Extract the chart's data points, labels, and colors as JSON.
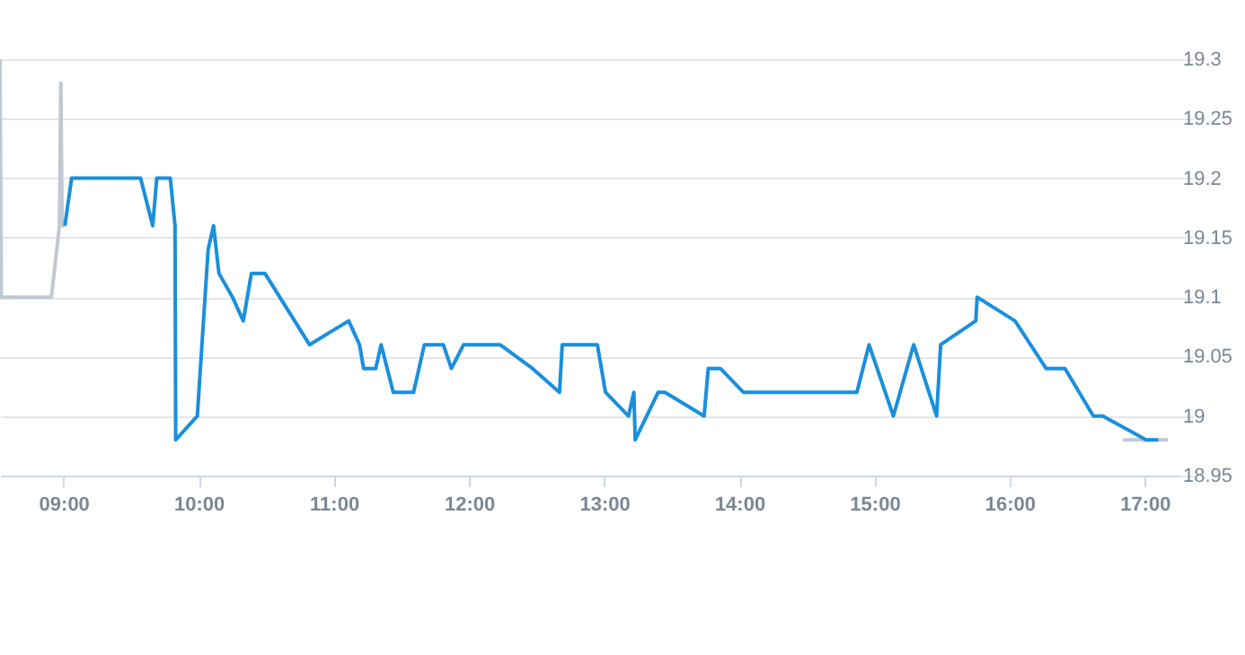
{
  "chart_data": {
    "type": "line",
    "xlim": [
      8.53,
      17.25
    ],
    "ylim": [
      18.95,
      19.3
    ],
    "xticks": [
      {
        "value": 9,
        "label": "09:00"
      },
      {
        "value": 10,
        "label": "10:00"
      },
      {
        "value": 11,
        "label": "11:00"
      },
      {
        "value": 12,
        "label": "12:00"
      },
      {
        "value": 13,
        "label": "13:00"
      },
      {
        "value": 14,
        "label": "14:00"
      },
      {
        "value": 15,
        "label": "15:00"
      },
      {
        "value": 16,
        "label": "16:00"
      },
      {
        "value": 17,
        "label": "17:00"
      }
    ],
    "yticks": [
      18.95,
      19,
      19.05,
      19.1,
      19.15,
      19.2,
      19.25,
      19.3
    ],
    "grid": "y",
    "marker": "none",
    "line_style": "solid",
    "series": [
      {
        "color": "#c0c9d2",
        "x": [
          8.53,
          8.54,
          8.91,
          8.97,
          8.98,
          8.99,
          9.01
        ],
        "values": [
          19.3,
          19.1,
          19.1,
          19.16,
          19.28,
          19.16,
          19.16
        ]
      },
      {
        "color": "#c0c9d2",
        "x": [
          16.84,
          17.17
        ],
        "values": [
          18.98,
          18.98
        ]
      },
      {
        "color": "#1a8fdc",
        "x": [
          9.01,
          9.06,
          9.57,
          9.66,
          9.69,
          9.79,
          9.825,
          9.83,
          9.99,
          10.07,
          10.11,
          10.15,
          10.25,
          10.33,
          10.39,
          10.49,
          10.82,
          11.11,
          11.19,
          11.22,
          11.31,
          11.35,
          11.44,
          11.59,
          11.67,
          11.81,
          11.87,
          11.96,
          12.23,
          12.47,
          12.67,
          12.69,
          12.95,
          13.01,
          13.18,
          13.22,
          13.23,
          13.4,
          13.45,
          13.74,
          13.77,
          13.86,
          14.03,
          14.87,
          14.96,
          15.14,
          15.29,
          15.46,
          15.49,
          15.75,
          15.76,
          16.04,
          16.27,
          16.41,
          16.62,
          16.69,
          17.01,
          17.1
        ],
        "values": [
          19.16,
          19.2,
          19.2,
          19.16,
          19.2,
          19.2,
          19.16,
          18.98,
          19.0,
          19.14,
          19.16,
          19.12,
          19.1,
          19.08,
          19.12,
          19.12,
          19.06,
          19.08,
          19.06,
          19.04,
          19.04,
          19.06,
          19.02,
          19.02,
          19.06,
          19.06,
          19.04,
          19.06,
          19.06,
          19.04,
          19.02,
          19.06,
          19.06,
          19.02,
          19.0,
          19.02,
          18.98,
          19.02,
          19.02,
          19.0,
          19.04,
          19.04,
          19.02,
          19.02,
          19.06,
          19.0,
          19.06,
          19.0,
          19.06,
          19.08,
          19.1,
          19.08,
          19.04,
          19.04,
          19.0,
          19.0,
          18.98,
          18.98
        ]
      }
    ]
  }
}
